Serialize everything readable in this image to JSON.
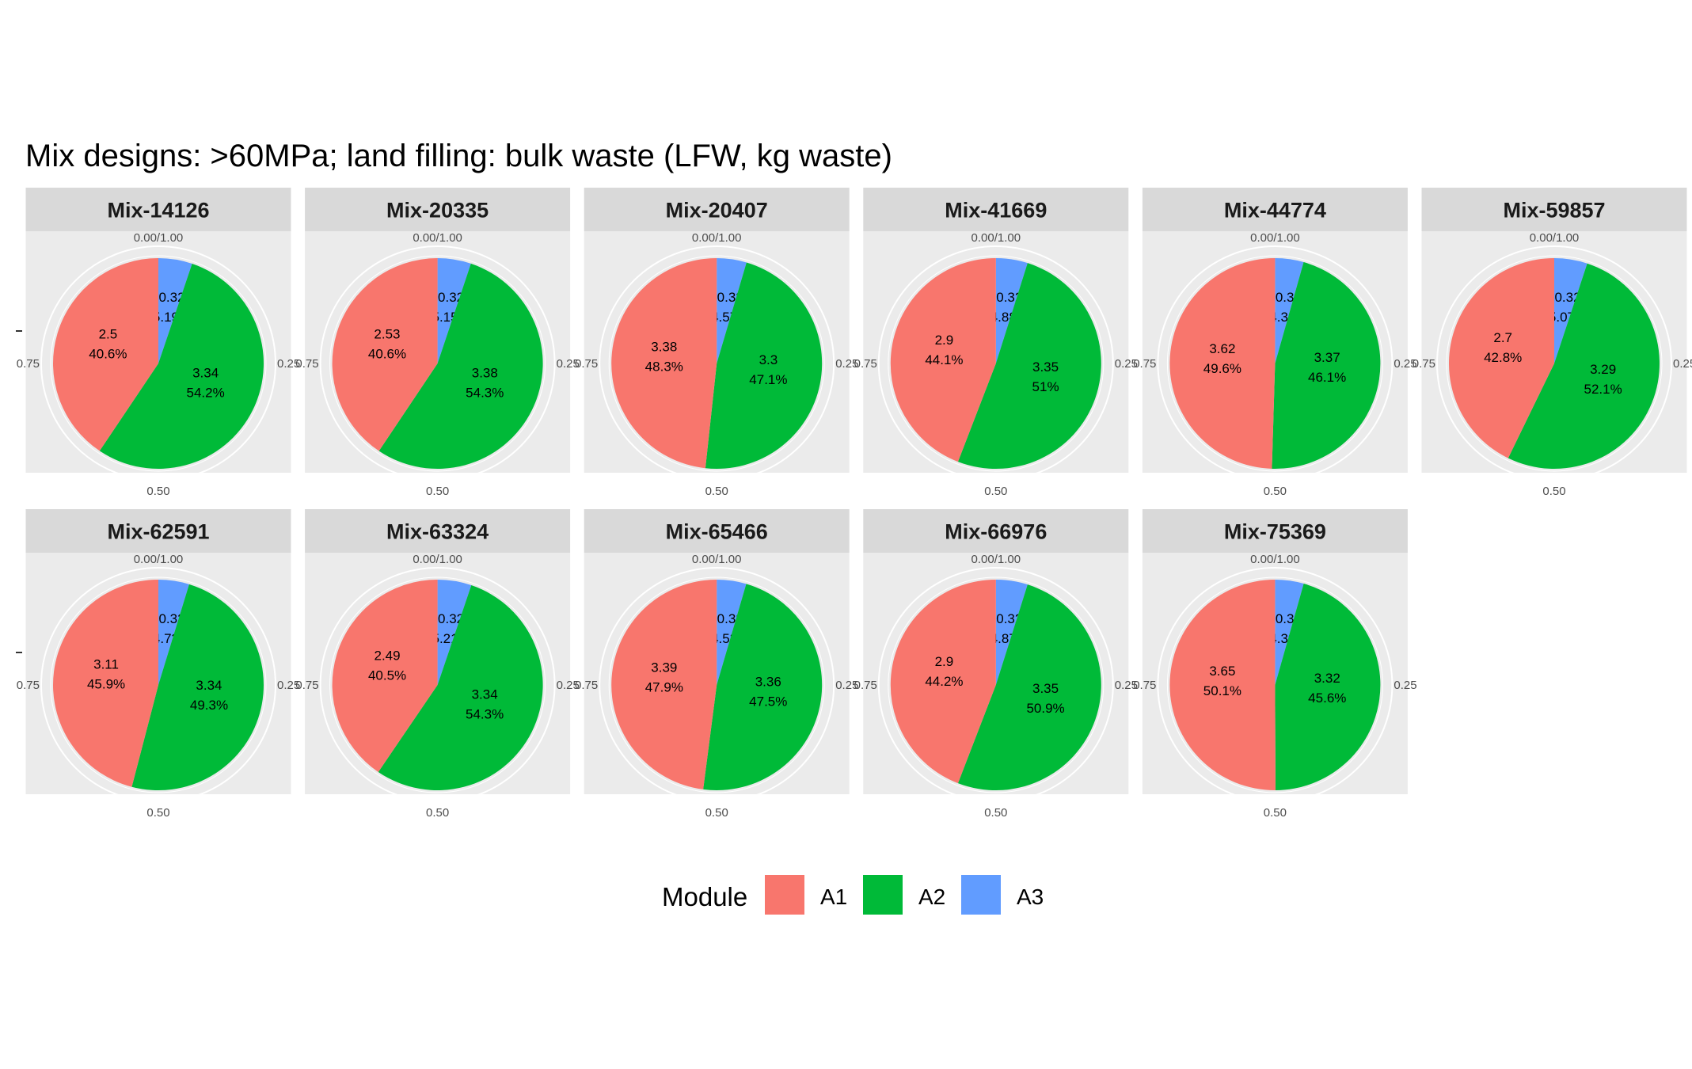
{
  "chart_data": {
    "type": "pie",
    "title": "Mix designs: >60MPa; land filling: bulk waste (LFW, kg waste)",
    "theta_ticks": [
      "0.00/1.00",
      "0.25",
      "0.50",
      "0.75"
    ],
    "legend": {
      "title": "Module",
      "position": "bottom",
      "entries": [
        {
          "name": "A1",
          "color": "#F8766D"
        },
        {
          "name": "A2",
          "color": "#00BA38"
        },
        {
          "name": "A3",
          "color": "#619CFF"
        }
      ]
    },
    "panels": [
      {
        "name": "Mix-14126",
        "slices": [
          {
            "module": "A1",
            "value": 2.5,
            "value_label": "2.5",
            "pct_label": "40.6%"
          },
          {
            "module": "A2",
            "value": 3.34,
            "value_label": "3.34",
            "pct_label": "54.2%"
          },
          {
            "module": "A3",
            "value": 0.32,
            "value_label": "0.32",
            "pct_label": "5.19%"
          }
        ]
      },
      {
        "name": "Mix-20335",
        "slices": [
          {
            "module": "A1",
            "value": 2.53,
            "value_label": "2.53",
            "pct_label": "40.6%"
          },
          {
            "module": "A2",
            "value": 3.38,
            "value_label": "3.38",
            "pct_label": "54.3%"
          },
          {
            "module": "A3",
            "value": 0.32,
            "value_label": "0.32",
            "pct_label": "5.15%"
          }
        ]
      },
      {
        "name": "Mix-20407",
        "slices": [
          {
            "module": "A1",
            "value": 3.38,
            "value_label": "3.38",
            "pct_label": "48.3%"
          },
          {
            "module": "A2",
            "value": 3.3,
            "value_label": "3.3",
            "pct_label": "47.1%"
          },
          {
            "module": "A3",
            "value": 0.32,
            "value_label": "0.32",
            "pct_label": "4.57%"
          }
        ]
      },
      {
        "name": "Mix-41669",
        "slices": [
          {
            "module": "A1",
            "value": 2.9,
            "value_label": "2.9",
            "pct_label": "44.1%"
          },
          {
            "module": "A2",
            "value": 3.35,
            "value_label": "3.35",
            "pct_label": "51%"
          },
          {
            "module": "A3",
            "value": 0.32,
            "value_label": "0.32",
            "pct_label": "4.88%"
          }
        ]
      },
      {
        "name": "Mix-44774",
        "slices": [
          {
            "module": "A1",
            "value": 3.62,
            "value_label": "3.62",
            "pct_label": "49.6%"
          },
          {
            "module": "A2",
            "value": 3.37,
            "value_label": "3.37",
            "pct_label": "46.1%"
          },
          {
            "module": "A3",
            "value": 0.32,
            "value_label": "0.32",
            "pct_label": "4.38%"
          }
        ]
      },
      {
        "name": "Mix-59857",
        "slices": [
          {
            "module": "A1",
            "value": 2.7,
            "value_label": "2.7",
            "pct_label": "42.8%"
          },
          {
            "module": "A2",
            "value": 3.29,
            "value_label": "3.29",
            "pct_label": "52.1%"
          },
          {
            "module": "A3",
            "value": 0.32,
            "value_label": "0.32",
            "pct_label": "5.07%"
          }
        ]
      },
      {
        "name": "Mix-62591",
        "slices": [
          {
            "module": "A1",
            "value": 3.11,
            "value_label": "3.11",
            "pct_label": "45.9%"
          },
          {
            "module": "A2",
            "value": 3.34,
            "value_label": "3.34",
            "pct_label": "49.3%"
          },
          {
            "module": "A3",
            "value": 0.32,
            "value_label": "0.32",
            "pct_label": "4.73%"
          }
        ]
      },
      {
        "name": "Mix-63324",
        "slices": [
          {
            "module": "A1",
            "value": 2.49,
            "value_label": "2.49",
            "pct_label": "40.5%"
          },
          {
            "module": "A2",
            "value": 3.34,
            "value_label": "3.34",
            "pct_label": "54.3%"
          },
          {
            "module": "A3",
            "value": 0.32,
            "value_label": "0.32",
            "pct_label": "5.21%"
          }
        ]
      },
      {
        "name": "Mix-65466",
        "slices": [
          {
            "module": "A1",
            "value": 3.39,
            "value_label": "3.39",
            "pct_label": "47.9%"
          },
          {
            "module": "A2",
            "value": 3.36,
            "value_label": "3.36",
            "pct_label": "47.5%"
          },
          {
            "module": "A3",
            "value": 0.32,
            "value_label": "0.32",
            "pct_label": "4.53%"
          }
        ]
      },
      {
        "name": "Mix-66976",
        "slices": [
          {
            "module": "A1",
            "value": 2.9,
            "value_label": "2.9",
            "pct_label": "44.2%"
          },
          {
            "module": "A2",
            "value": 3.35,
            "value_label": "3.35",
            "pct_label": "50.9%"
          },
          {
            "module": "A3",
            "value": 0.32,
            "value_label": "0.32",
            "pct_label": "4.87%"
          }
        ]
      },
      {
        "name": "Mix-75369",
        "slices": [
          {
            "module": "A1",
            "value": 3.65,
            "value_label": "3.65",
            "pct_label": "50.1%"
          },
          {
            "module": "A2",
            "value": 3.32,
            "value_label": "3.32",
            "pct_label": "45.6%"
          },
          {
            "module": "A3",
            "value": 0.32,
            "value_label": "0.32",
            "pct_label": "4.39%"
          }
        ]
      }
    ]
  }
}
